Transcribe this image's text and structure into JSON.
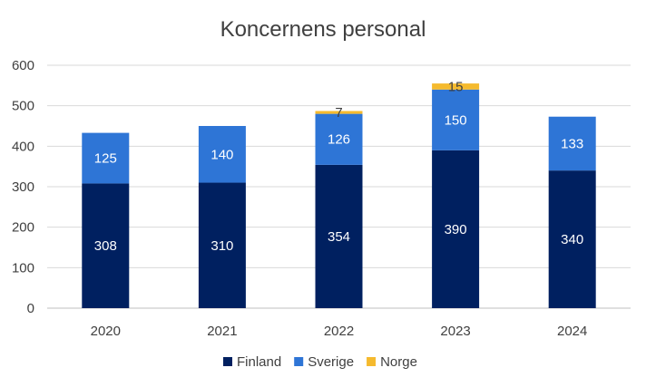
{
  "chart_data": {
    "type": "bar",
    "stacked": true,
    "title": "Koncernens personal",
    "xlabel": "",
    "ylabel": "",
    "categories": [
      "2020",
      "2021",
      "2022",
      "2023",
      "2024"
    ],
    "series": [
      {
        "name": "Finland",
        "values": [
          308,
          310,
          354,
          390,
          340
        ],
        "color": "#002060",
        "label_color": "#ffffff"
      },
      {
        "name": "Sverige",
        "values": [
          125,
          140,
          126,
          150,
          133
        ],
        "color": "#2E75D6",
        "label_color": "#ffffff"
      },
      {
        "name": "Norge",
        "values": [
          0,
          0,
          7,
          15,
          0
        ],
        "color": "#F5BA2E",
        "label_color": "#404040"
      }
    ],
    "data_labels": [
      [
        "308",
        "310",
        "354",
        "390",
        "340"
      ],
      [
        "125",
        "140",
        "126",
        "150",
        "133"
      ],
      [
        "",
        "",
        "7",
        "15",
        ""
      ]
    ],
    "ylim": [
      0,
      600
    ],
    "yticks": [
      0,
      100,
      200,
      300,
      400,
      500,
      600
    ],
    "grid": true,
    "legend": "bottom"
  }
}
